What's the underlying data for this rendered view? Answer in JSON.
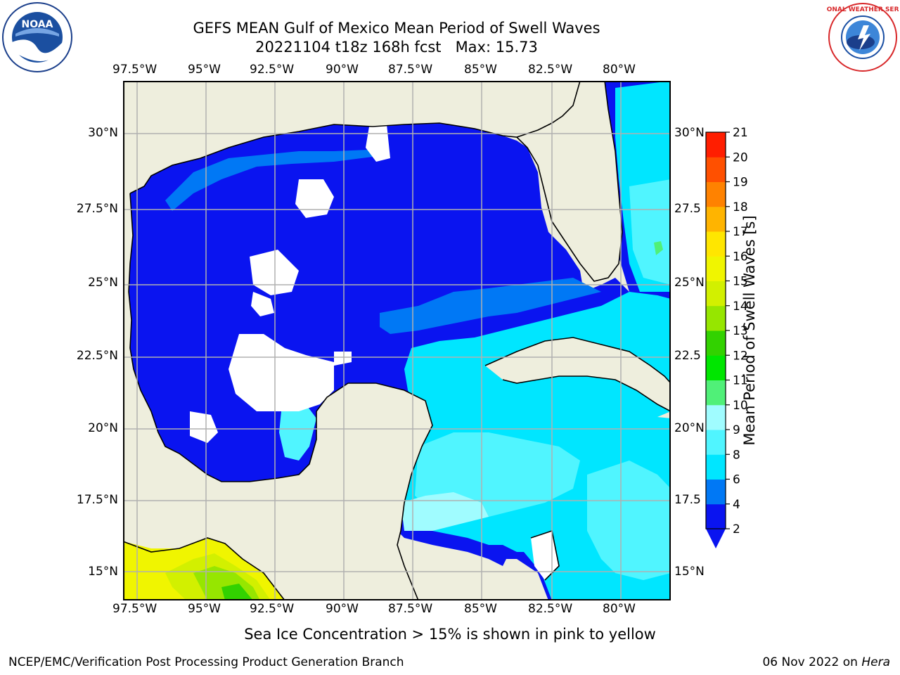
{
  "title": {
    "line1": "GEFS MEAN Gulf of Mexico Mean Period of Swell Waves",
    "line2": "20221104 t18z 168h fcst   Max: 15.73"
  },
  "map": {
    "lon_labels": [
      "97.5°W",
      "95°W",
      "92.5°W",
      "90°W",
      "87.5°W",
      "85°W",
      "82.5°W",
      "80°W"
    ],
    "lat_labels": [
      "30°N",
      "27.5°N",
      "25°N",
      "22.5°N",
      "20°N",
      "17.5°N",
      "15°N"
    ],
    "lat_labels_right": [
      "30°N",
      "27.5",
      "25°N",
      "22.5",
      "20°N",
      "17.5",
      "15°N"
    ],
    "extent": {
      "lon_min": -98.0,
      "lon_max": -78.2,
      "lat_min": 14.0,
      "lat_max": 31.8
    },
    "land_color": "#eeeedd",
    "ocean_nodata_color": "#ffffff"
  },
  "colorbar": {
    "label": "Mean Period of Swell Waves [s]",
    "ticks": [
      "2",
      "4",
      "6",
      "8",
      "9",
      "10",
      "11",
      "12",
      "13",
      "14",
      "15",
      "16",
      "17",
      "18",
      "19",
      "20",
      "21"
    ],
    "colors": [
      "#0a14f0",
      "#0078f5",
      "#00e6ff",
      "#50f5ff",
      "#a0fcff",
      "#50f078",
      "#00e600",
      "#32d200",
      "#96e600",
      "#d2f000",
      "#f0f500",
      "#ffe600",
      "#ffb400",
      "#ff8200",
      "#ff5000",
      "#ff1e00"
    ]
  },
  "notes": {
    "sea_ice": "Sea Ice Concentration > 15% is shown in pink to yellow"
  },
  "footer": {
    "left": "NCEP/EMC/Verification Post Processing Product Generation Branch",
    "date": "06 Nov 2022 on ",
    "machine": "Hera"
  },
  "logos": {
    "left": "NOAA",
    "right": "NATIONAL WEATHER SERVICE"
  }
}
